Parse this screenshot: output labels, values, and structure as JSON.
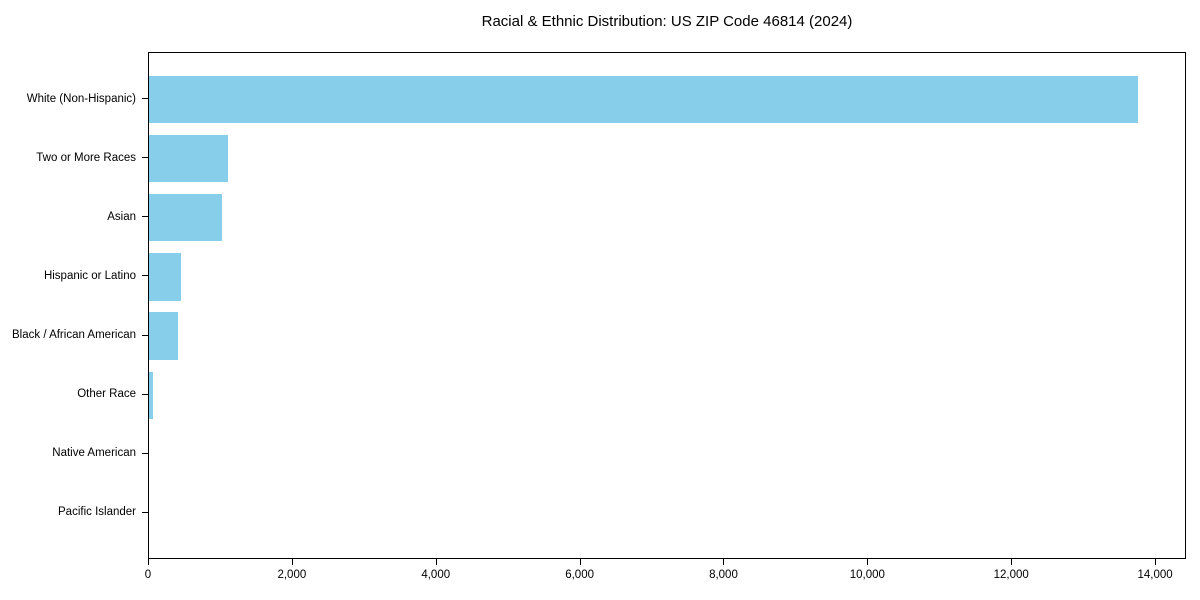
{
  "title": "Racial & Ethnic Distribution: US ZIP Code 46814 (2024)",
  "chart_data": {
    "type": "bar",
    "orientation": "horizontal",
    "title": "Racial & Ethnic Distribution: US ZIP Code 46814 (2024)",
    "categories": [
      "White (Non-Hispanic)",
      "Two or More Races",
      "Asian",
      "Hispanic or Latino",
      "Black / African American",
      "Other Race",
      "Native American",
      "Pacific Islander"
    ],
    "values": [
      13750,
      1100,
      1020,
      450,
      400,
      60,
      0,
      0
    ],
    "xlabel": "",
    "ylabel": "",
    "xlim": [
      0,
      14430
    ],
    "xticks": {
      "values": [
        0,
        2000,
        4000,
        6000,
        8000,
        10000,
        12000,
        14000
      ],
      "labels": [
        "0",
        "2,000",
        "4,000",
        "6,000",
        "8,000",
        "10,000",
        "12,000",
        "14,000"
      ]
    },
    "grid": false,
    "legend": null,
    "bar_color": "#87CEEB",
    "frame_color": "#000000",
    "text_color": "#000000",
    "background": "#ffffff"
  }
}
